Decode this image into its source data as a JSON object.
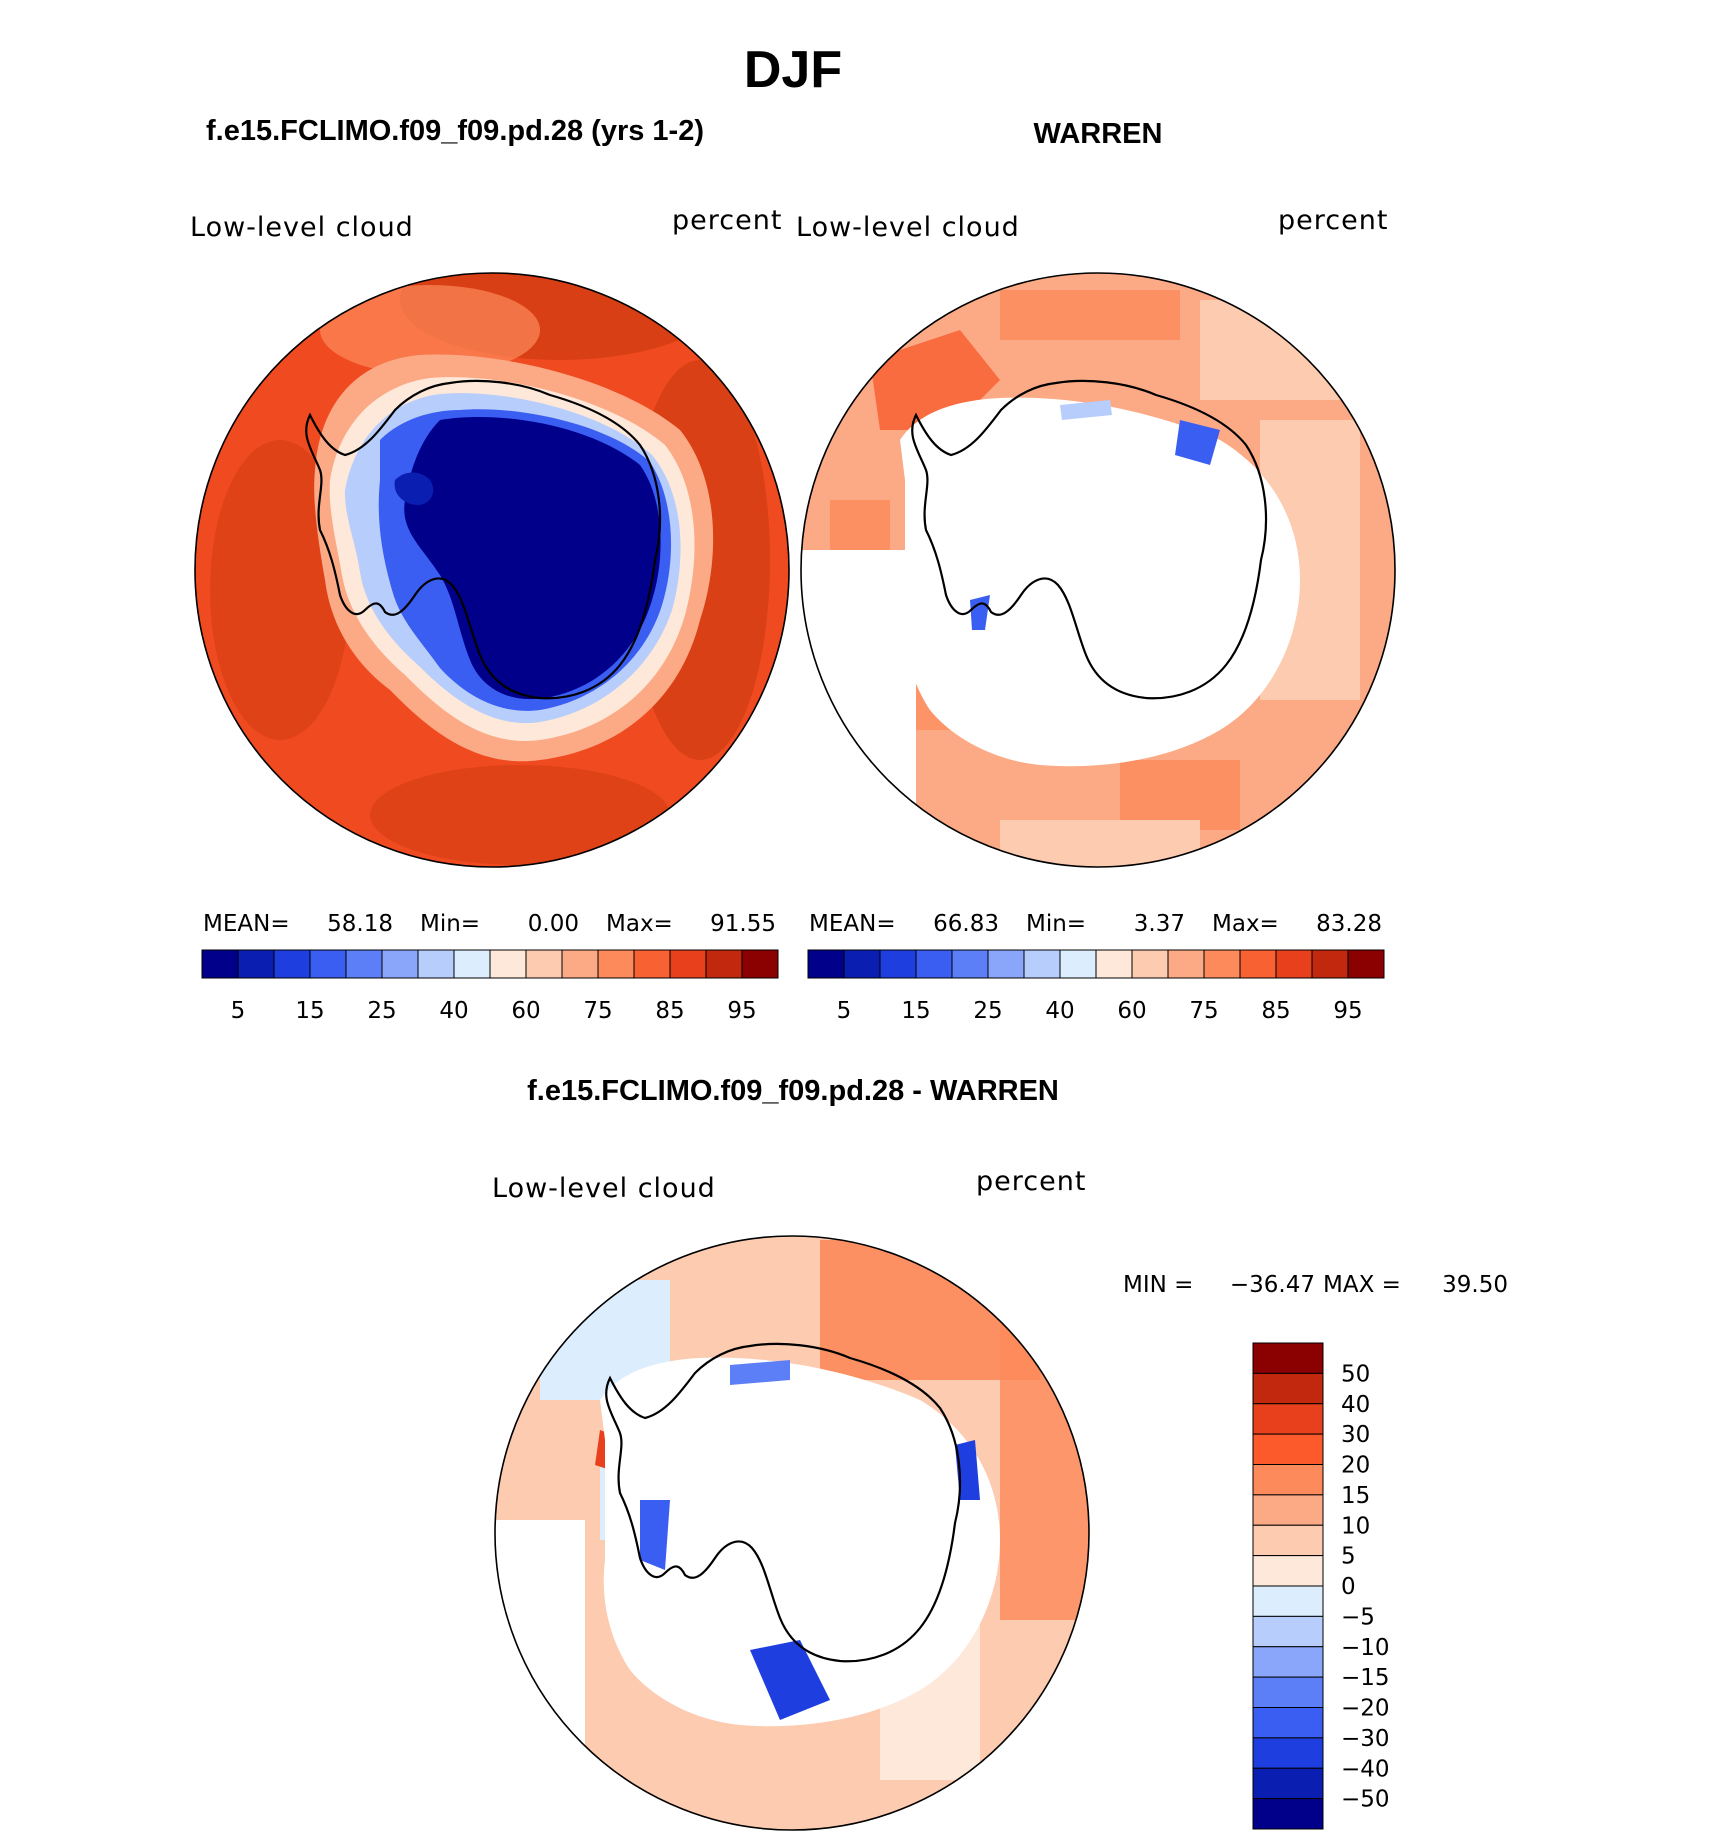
{
  "figure": {
    "title": "DJF"
  },
  "chart_data": [
    {
      "type": "heatmap",
      "projection": "south-polar-stereographic",
      "title": "f.e15.FCLIMO.f09_f09.pd.28 (yrs 1-2)",
      "variable": "Low-level cloud",
      "units": "percent",
      "stats": {
        "mean_label": "MEAN=",
        "mean": "58.18",
        "min_label": "Min=",
        "min": "0.00",
        "max_label": "Max=",
        "max": "91.55"
      },
      "levels": [
        5,
        10,
        15,
        20,
        25,
        30,
        40,
        50,
        60,
        70,
        75,
        80,
        85,
        90,
        95
      ],
      "tick_labels": [
        "5",
        "15",
        "25",
        "40",
        "60",
        "75",
        "85",
        "95"
      ],
      "colors": [
        "#00008b",
        "#0a1fb2",
        "#1f3ee0",
        "#3a5df2",
        "#5c7ff8",
        "#8aa6fa",
        "#b7cdfc",
        "#dceefe",
        "#fde8d9",
        "#fccbb0",
        "#fcaa86",
        "#fc8a5a",
        "#f86132",
        "#e8401c",
        "#c1280d",
        "#8b0000"
      ]
    },
    {
      "type": "heatmap",
      "projection": "south-polar-stereographic",
      "title": "WARREN",
      "variable": "Low-level cloud",
      "units": "percent",
      "stats": {
        "mean_label": "MEAN=",
        "mean": "66.83",
        "min_label": "Min=",
        "min": "3.37",
        "max_label": "Max=",
        "max": "83.28"
      },
      "levels": [
        5,
        10,
        15,
        20,
        25,
        30,
        40,
        50,
        60,
        70,
        75,
        80,
        85,
        90,
        95
      ],
      "tick_labels": [
        "5",
        "15",
        "25",
        "40",
        "60",
        "75",
        "85",
        "95"
      ],
      "colors": [
        "#00008b",
        "#0a1fb2",
        "#1f3ee0",
        "#3a5df2",
        "#5c7ff8",
        "#8aa6fa",
        "#b7cdfc",
        "#dceefe",
        "#fde8d9",
        "#fccbb0",
        "#fcaa86",
        "#fc8a5a",
        "#f86132",
        "#e8401c",
        "#c1280d",
        "#8b0000"
      ]
    },
    {
      "type": "heatmap",
      "projection": "south-polar-stereographic",
      "title": "f.e15.FCLIMO.f09_f09.pd.28 - WARREN",
      "variable": "Low-level cloud",
      "units": "percent",
      "stats": {
        "min_label": "MIN =",
        "min": "−36.47",
        "max_label": "MAX =",
        "max": "39.50"
      },
      "levels": [
        -50,
        -40,
        -30,
        -20,
        -15,
        -10,
        -5,
        0,
        5,
        10,
        15,
        20,
        30,
        40,
        50
      ],
      "tick_labels": [
        "50",
        "40",
        "30",
        "20",
        "15",
        "10",
        "5",
        "0",
        "−5",
        "−10",
        "−15",
        "−20",
        "−30",
        "−40",
        "−50"
      ],
      "colors": [
        "#8b0000",
        "#c1280d",
        "#e8401c",
        "#fc5a2a",
        "#fc8a5a",
        "#fcaa86",
        "#fccbb0",
        "#fde8d9",
        "#dceefe",
        "#b7cdfc",
        "#8aa6fa",
        "#5c7ff8",
        "#3a5df2",
        "#1f3ee0",
        "#0a1fb2",
        "#00008b"
      ]
    }
  ]
}
